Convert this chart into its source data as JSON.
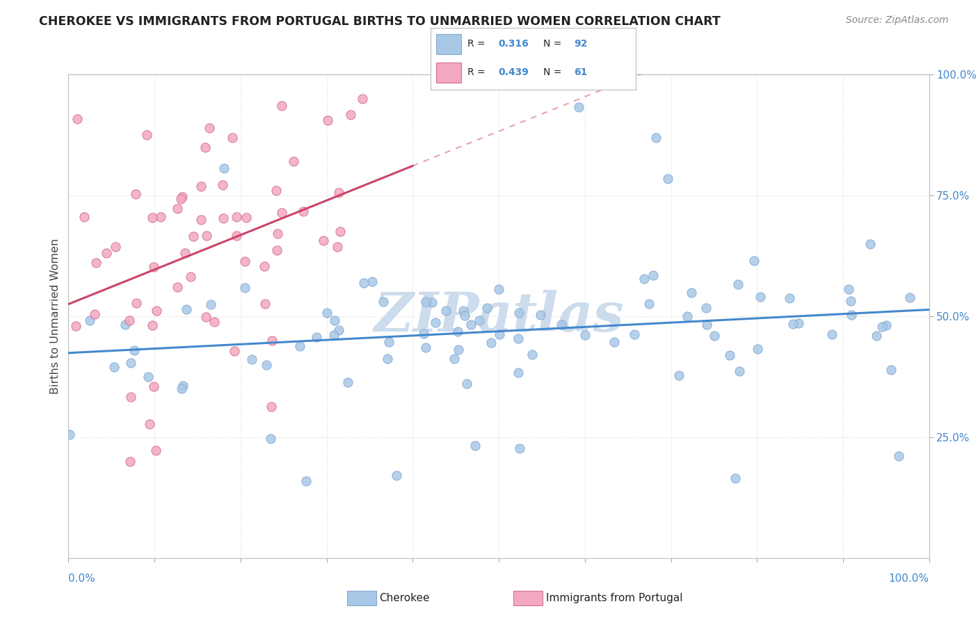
{
  "title": "CHEROKEE VS IMMIGRANTS FROM PORTUGAL BIRTHS TO UNMARRIED WOMEN CORRELATION CHART",
  "source": "Source: ZipAtlas.com",
  "ylabel": "Births to Unmarried Women",
  "cherokee_R": 0.316,
  "cherokee_N": 92,
  "portugal_R": 0.439,
  "portugal_N": 61,
  "cherokee_color": "#a8c8e8",
  "cherokee_edge": "#88aad0",
  "portugal_color": "#f4a8c0",
  "portugal_edge": "#d07090",
  "trendline_cherokee_color": "#4488cc",
  "trendline_portugal_color": "#cc4466",
  "watermark_color": "#ccdcec",
  "background_color": "#ffffff",
  "grid_color": "#dddddd",
  "tick_color": "#4488cc",
  "title_color": "#222222",
  "source_color": "#888888",
  "ylabel_color": "#444444"
}
